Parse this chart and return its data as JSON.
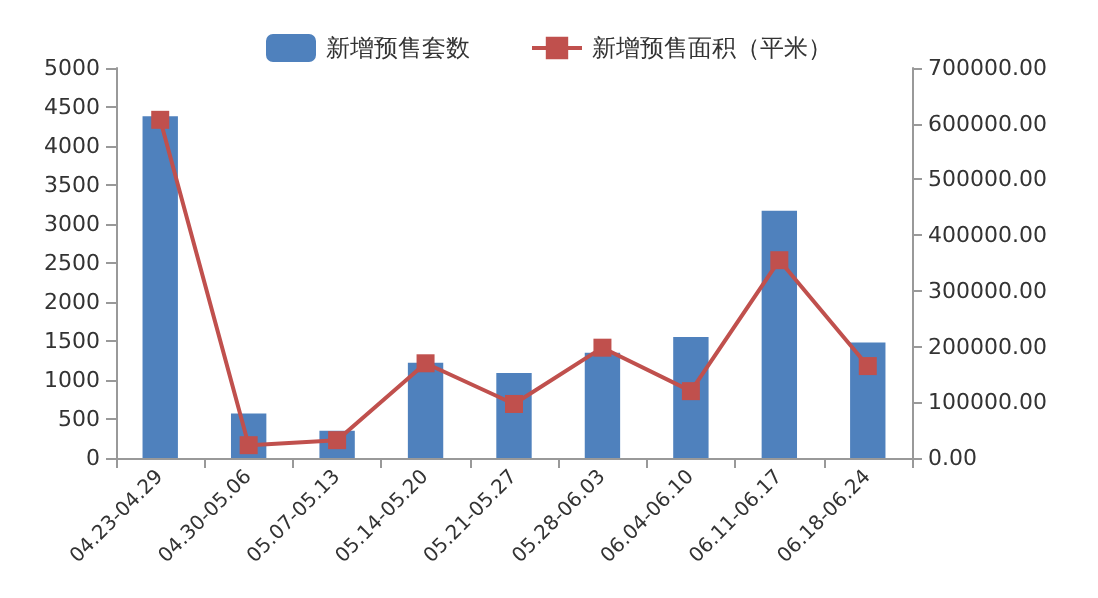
{
  "chart_data": {
    "type": "bar",
    "categories": [
      "04.23-04.29",
      "04.30-05.06",
      "05.07-05.13",
      "05.14-05.20",
      "05.21-05.27",
      "05.28-06.03",
      "06.04-06.10",
      "06.11-06.17",
      "06.18-06.24"
    ],
    "series": [
      {
        "name": "新增预售套数",
        "color": "#4f81bd",
        "values": [
          4380,
          570,
          350,
          1220,
          1090,
          1350,
          1550,
          3170,
          1480
        ]
      },
      {
        "name": "新增预售面积（平米）",
        "type": "line",
        "axis": "y2",
        "color": "#c0504d",
        "marker": "square",
        "values": [
          607000,
          23000,
          32000,
          170000,
          97000,
          198000,
          120000,
          355000,
          165000
        ]
      }
    ],
    "ylim": [
      0,
      5000
    ],
    "yticks": [
      0,
      500,
      1000,
      1500,
      2000,
      2500,
      3000,
      3500,
      4000,
      4500,
      5000
    ],
    "y2lim": [
      0,
      700000
    ],
    "y2ticks": [
      {
        "value": 0,
        "label": "0.00"
      },
      {
        "value": 100000,
        "label": "100000.00"
      },
      {
        "value": 200000,
        "label": "200000.00"
      },
      {
        "value": 300000,
        "label": "300000.00"
      },
      {
        "value": 400000,
        "label": "400000.00"
      },
      {
        "value": 500000,
        "label": "500000.00"
      },
      {
        "value": 600000,
        "label": "600000.00"
      },
      {
        "value": 700000,
        "label": "700000.00"
      }
    ],
    "grid": false,
    "legend": "top"
  }
}
